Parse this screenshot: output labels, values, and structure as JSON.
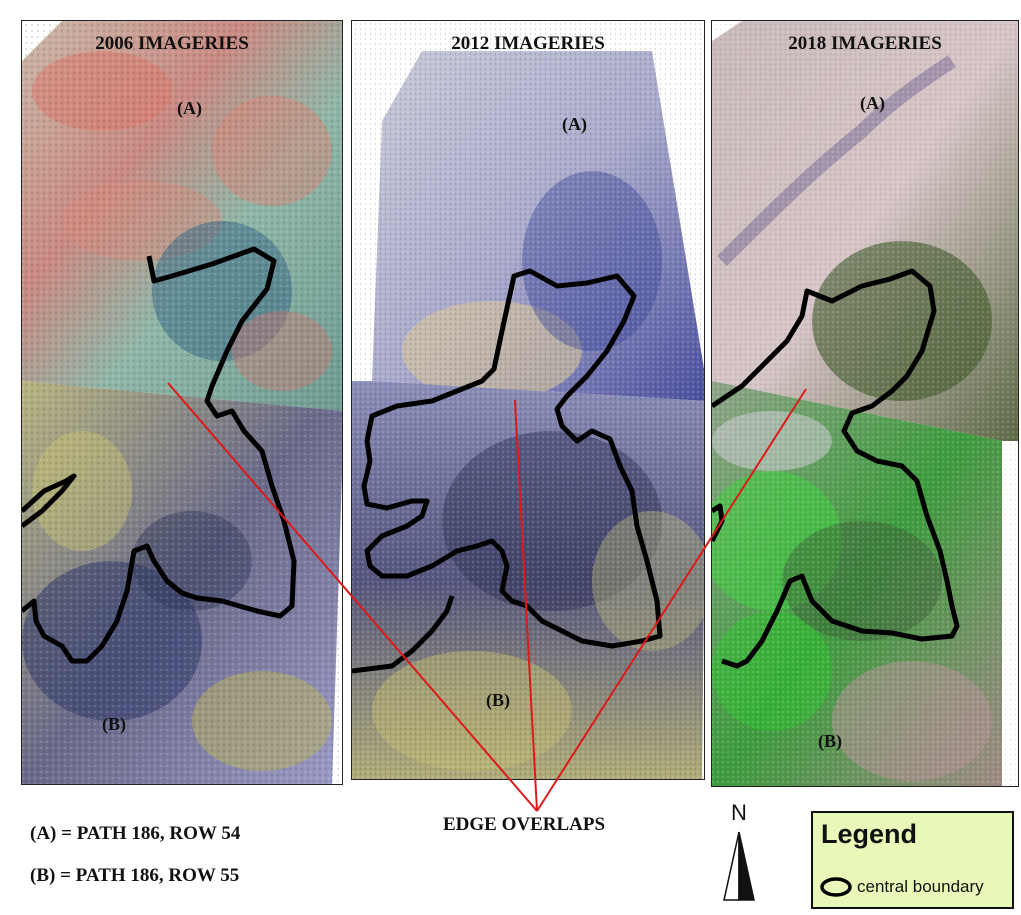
{
  "panels": [
    {
      "title": "2006 IMAGERIES",
      "label_a": "(A)",
      "label_b": "(B)"
    },
    {
      "title": "2012 IMAGERIES",
      "label_a": "(A)",
      "label_b": "(B)"
    },
    {
      "title": "2018 IMAGERIES",
      "label_a": "(A)",
      "label_b": "(B)"
    }
  ],
  "captions": {
    "path_a": "(A) = PATH 186, ROW 54",
    "path_b": "(B) = PATH 186, ROW 55",
    "edge_overlaps": "EDGE OVERLAPS"
  },
  "north_arrow": {
    "letter": "N"
  },
  "legend": {
    "title": "Legend",
    "item": "central boundary"
  },
  "colors": {
    "boundary": "#000000",
    "overlap_lines": "#dd1a1a",
    "legend_bg": "#e8f8b8"
  }
}
